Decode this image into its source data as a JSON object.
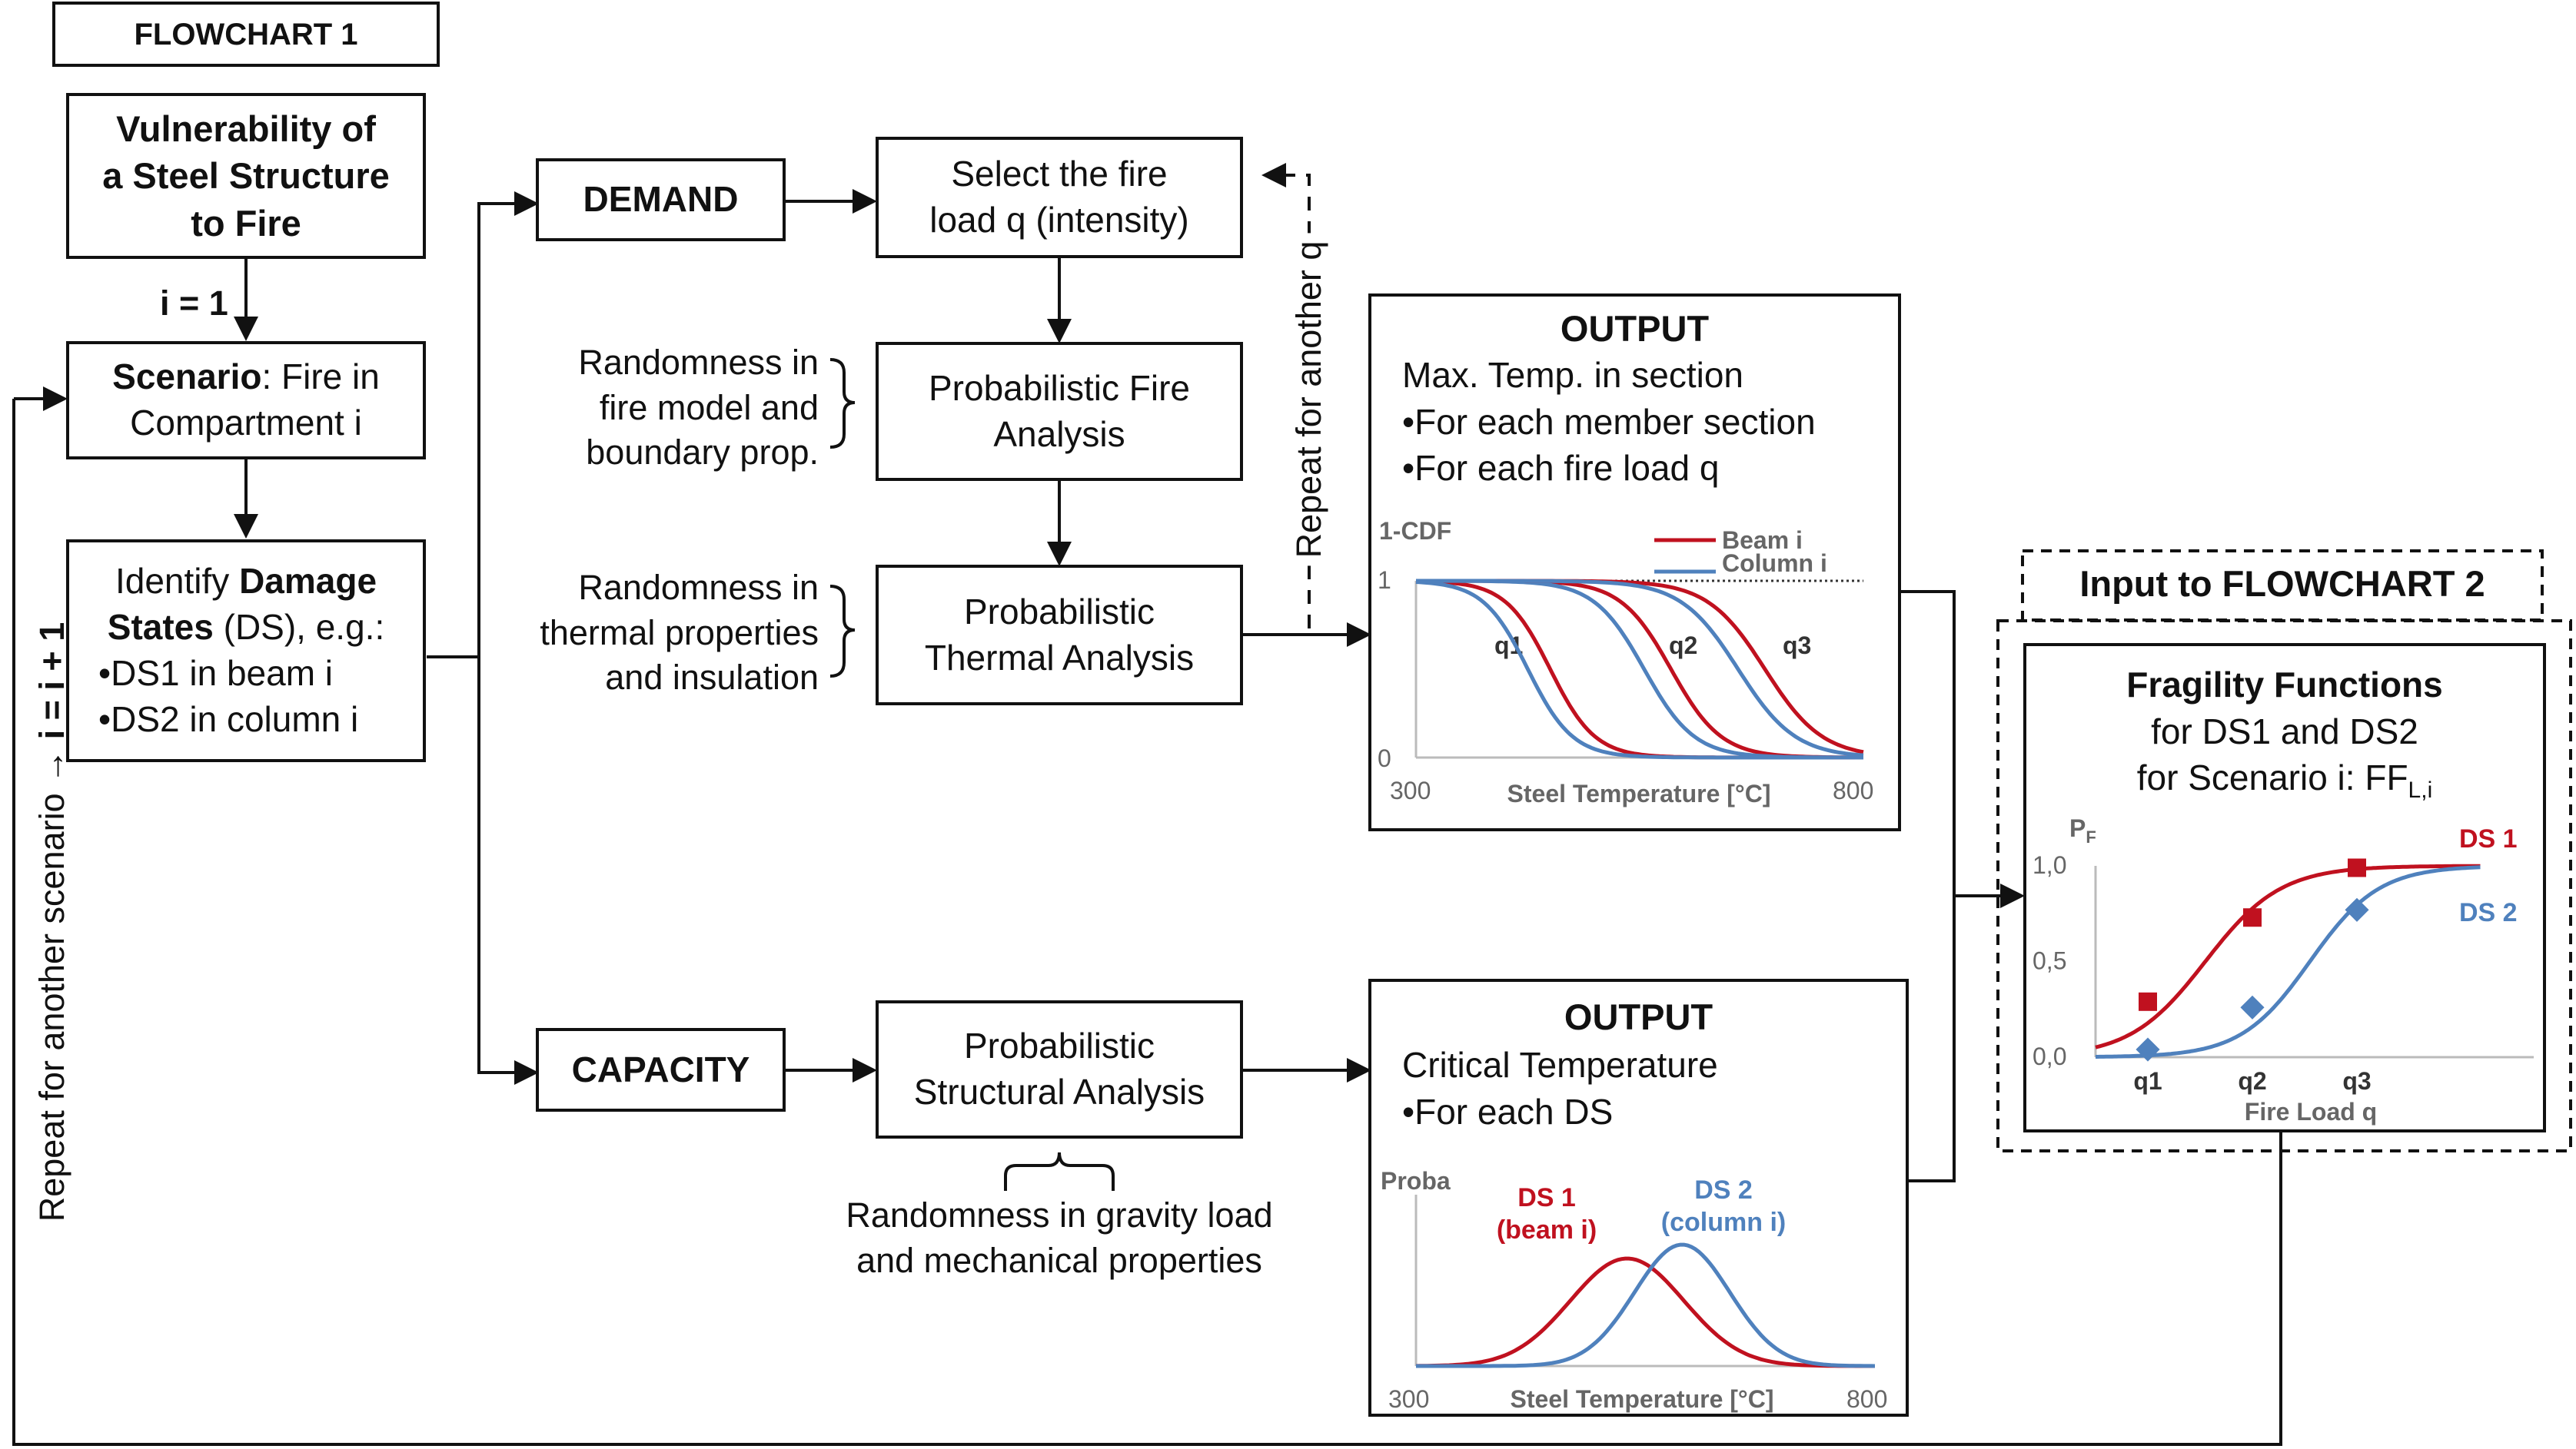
{
  "title": "FLOWCHART 1",
  "vulnerability": {
    "l1": "Vulnerability of",
    "l2": "a Steel Structure",
    "l3": "to Fire"
  },
  "i_init": "i = 1",
  "scenario": {
    "bold": "Scenario",
    "rest": ": Fire in",
    "l2": "Compartment i"
  },
  "damage": {
    "l1": "Identify",
    "l1b": "Damage",
    "l2b": "States",
    "l2": " (DS), e.g.:",
    "l3": "•DS1 in beam i",
    "l4": "•DS2 in column i"
  },
  "repeat_scenario": "Repeat for another scenario →",
  "i_incr": "i = i + 1",
  "demand": "DEMAND",
  "capacity": "CAPACITY",
  "select_fire": {
    "l1": "Select the fire",
    "l2": "load q (intensity)"
  },
  "fire_analysis": {
    "l1": "Probabilistic Fire",
    "l2": "Analysis"
  },
  "thermal_analysis": {
    "l1": "Probabilistic",
    "l2": "Thermal Analysis"
  },
  "structural_analysis": {
    "l1": "Probabilistic",
    "l2": "Structural Analysis"
  },
  "rand_fire": {
    "l1": "Randomness in",
    "l2": "fire model and",
    "l3": "boundary prop."
  },
  "rand_thermal": {
    "l1": "Randomness in",
    "l2": "thermal properties",
    "l3": "and insulation"
  },
  "rand_gravity": {
    "l1": "Randomness in gravity load",
    "l2": "and mechanical properties"
  },
  "repeat_q": "Repeat for another q",
  "output1": {
    "title": "OUTPUT",
    "l1": "Max. Temp. in section",
    "l2": "•For each member section",
    "l3": "•For each fire load q"
  },
  "output2": {
    "title": "OUTPUT",
    "l1": "Critical Temperature",
    "l2": "•For each DS"
  },
  "input2": "Input to FLOWCHART 2",
  "fragility": {
    "title": "Fragility Functions",
    "l1": "for DS1 and DS2",
    "l2": "for Scenario i: FF",
    "l2sub": "L,i"
  },
  "colors": {
    "red": "#c0111f",
    "blue": "#4f81bd",
    "gray": "#7f7f7f"
  },
  "chart_data": [
    {
      "type": "line",
      "ylabel": "1-CDF",
      "xlabel": "Steel Temperature [°C]",
      "xlim": [
        300,
        800
      ],
      "ylim": [
        0,
        1
      ],
      "x_ticks": [
        "300",
        "800"
      ],
      "y_ticks": [
        "0",
        "1"
      ],
      "legend": [
        {
          "name": "Beam i",
          "color": "#c0111f"
        },
        {
          "name": "Column i",
          "color": "#4f81bd"
        }
      ],
      "annotations": [
        "q1",
        "q2",
        "q3"
      ],
      "series": [
        {
          "name": "Beam i",
          "q": "q1",
          "mid": 450,
          "scale": 25
        },
        {
          "name": "Column i",
          "q": "q1",
          "mid": 425,
          "scale": 25
        },
        {
          "name": "Beam i",
          "q": "q2",
          "mid": 585,
          "scale": 28
        },
        {
          "name": "Column i",
          "q": "q2",
          "mid": 555,
          "scale": 28
        },
        {
          "name": "Beam i",
          "q": "q3",
          "mid": 690,
          "scale": 32
        },
        {
          "name": "Column i",
          "q": "q3",
          "mid": 660,
          "scale": 32
        }
      ]
    },
    {
      "type": "line",
      "ylabel": "Proba",
      "xlabel": "Steel Temperature [°C]",
      "xlim": [
        300,
        800
      ],
      "x_ticks": [
        "300",
        "800"
      ],
      "series": [
        {
          "name": "DS 1 (beam i)",
          "l1": "DS 1",
          "l2": "(beam i)",
          "mean": 530,
          "sd": 62,
          "color": "#c0111f"
        },
        {
          "name": "DS 2 (column i)",
          "l1": "DS 2",
          "l2": "(column i)",
          "mean": 590,
          "sd": 52,
          "color": "#4f81bd"
        }
      ]
    },
    {
      "type": "line",
      "ylabel_main": "P",
      "ylabel_sub": "F",
      "xlabel": "Fire Load q",
      "ylim": [
        0,
        1
      ],
      "y_ticks": [
        "1,0",
        "0,5",
        "0,0"
      ],
      "y_tick_values": [
        1.0,
        0.5,
        0.0
      ],
      "categories": [
        "q1",
        "q2",
        "q3"
      ],
      "series": [
        {
          "name": "DS 1",
          "color": "#c0111f",
          "points": [
            0.29,
            0.73,
            0.99
          ]
        },
        {
          "name": "DS 2",
          "color": "#4f81bd",
          "points": [
            0.04,
            0.26,
            0.77
          ]
        }
      ]
    }
  ]
}
